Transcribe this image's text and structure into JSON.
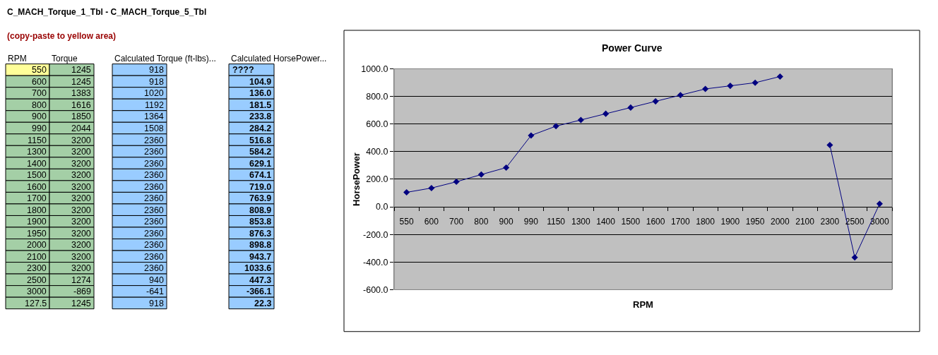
{
  "chart_data": [
    {
      "type": "other",
      "title": "C_MACH_Torque_1_Tbl - C_MACH_Torque_5_Tbl",
      "subtitle": "(copy-paste to yellow area)",
      "annotations": [
        "RPM",
        "Torque",
        "Calculated Torque (ft-lbs)...",
        "Calculated HorsePower...",
        "550",
        "1245",
        "918",
        "????",
        "600",
        "1245",
        "918",
        "104.9",
        "700",
        "1383",
        "1020",
        "136.0",
        "800",
        "1616",
        "1192",
        "181.5",
        "900",
        "1850",
        "1364",
        "233.8",
        "990",
        "2044",
        "1508",
        "284.2",
        "1150",
        "3200",
        "2360",
        "516.8",
        "1300",
        "3200",
        "2360",
        "584.2",
        "1400",
        "3200",
        "2360",
        "629.1",
        "1500",
        "3200",
        "2360",
        "674.1",
        "1600",
        "3200",
        "2360",
        "719.0",
        "1700",
        "3200",
        "2360",
        "763.9",
        "1800",
        "3200",
        "2360",
        "808.9",
        "1900",
        "3200",
        "2360",
        "853.8",
        "1950",
        "3200",
        "2360",
        "876.3",
        "2000",
        "3200",
        "2360",
        "898.8",
        "2100",
        "3200",
        "2360",
        "943.7",
        "2300",
        "3200",
        "2360",
        "1033.6",
        "2500",
        "1274",
        "940",
        "447.3",
        "3000",
        "-869",
        "-641",
        "-366.1",
        "127.5",
        "1245",
        "918",
        "22.3"
      ]
    },
    {
      "type": "line",
      "title": "Power Curve",
      "xlabel": "RPM",
      "ylabel": "HorsePower",
      "categories": [
        "550",
        "600",
        "700",
        "800",
        "900",
        "990",
        "1150",
        "1300",
        "1400",
        "1500",
        "1600",
        "1700",
        "1800",
        "1900",
        "1950",
        "2000",
        "2100",
        "2300",
        "2500",
        "3000"
      ],
      "series": [
        {
          "color": "#000080",
          "values": [
            104.9,
            136.0,
            181.5,
            233.8,
            284.2,
            516.8,
            584.2,
            629.1,
            674.1,
            719.0,
            763.9,
            808.9,
            853.8,
            876.3,
            898.8,
            943.7,
            null,
            447.3,
            -366.1,
            22.3
          ]
        }
      ],
      "ylim": [
        -600,
        1000
      ],
      "yticks": [
        {
          "value": -600,
          "label": "-600.0"
        },
        {
          "value": -400,
          "label": "-400.0"
        },
        {
          "value": -200,
          "label": "-200.0"
        },
        {
          "value": 0,
          "label": "0.0"
        },
        {
          "value": 200,
          "label": "200.0"
        },
        {
          "value": 400,
          "label": "400.0"
        },
        {
          "value": 600,
          "label": "600.0"
        },
        {
          "value": 800,
          "label": "800.0"
        },
        {
          "value": 1000,
          "label": "1000.0"
        }
      ],
      "grid": "y",
      "marker": "diamond",
      "line_style": "solid"
    }
  ]
}
